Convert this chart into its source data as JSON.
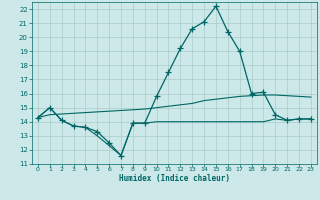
{
  "xlabel": "Humidex (Indice chaleur)",
  "xlim": [
    -0.5,
    23.5
  ],
  "ylim": [
    11,
    22.5
  ],
  "yticks": [
    11,
    12,
    13,
    14,
    15,
    16,
    17,
    18,
    19,
    20,
    21,
    22
  ],
  "xticks": [
    0,
    1,
    2,
    3,
    4,
    5,
    6,
    7,
    8,
    9,
    10,
    11,
    12,
    13,
    14,
    15,
    16,
    17,
    18,
    19,
    20,
    21,
    22,
    23
  ],
  "bg_color": "#cce8e8",
  "grid_color": "#aacccc",
  "line_color": "#006666",
  "line1_y": [
    14.3,
    15.0,
    14.1,
    13.7,
    13.6,
    13.0,
    12.3,
    11.6,
    13.9,
    13.9,
    14.0,
    14.0,
    14.0,
    14.0,
    14.0,
    14.0,
    14.0,
    14.0,
    14.0,
    14.0,
    14.2,
    14.1,
    14.2,
    14.2
  ],
  "line2_y": [
    14.3,
    15.0,
    14.1,
    13.7,
    13.6,
    13.3,
    12.5,
    11.6,
    13.9,
    13.9,
    15.8,
    17.5,
    19.2,
    20.6,
    21.1,
    22.2,
    20.4,
    19.0,
    16.0,
    16.1,
    14.5,
    14.1,
    14.2,
    14.2
  ],
  "line3_y": [
    14.3,
    14.5,
    14.55,
    14.6,
    14.65,
    14.7,
    14.75,
    14.8,
    14.85,
    14.9,
    15.0,
    15.1,
    15.2,
    15.3,
    15.5,
    15.6,
    15.7,
    15.8,
    15.85,
    15.9,
    15.9,
    15.85,
    15.8,
    15.75
  ]
}
